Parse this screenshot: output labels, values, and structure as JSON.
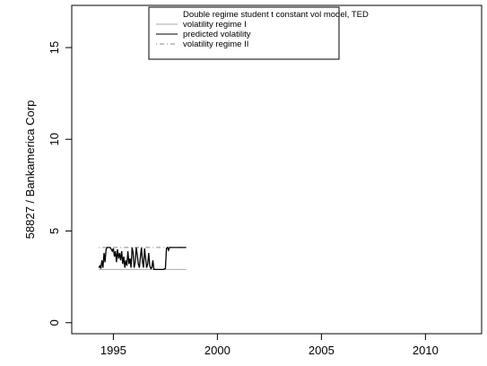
{
  "chart_data": {
    "type": "line",
    "title": "",
    "xlabel": "",
    "ylabel": "58827 / Bankamerica Corp",
    "xlim": [
      1993,
      2012.7
    ],
    "ylim": [
      -0.6,
      17.3
    ],
    "x_ticks": [
      1995,
      2000,
      2005,
      2010
    ],
    "x_tick_labels": [
      "1995",
      "2000",
      "2005",
      "2010"
    ],
    "y_ticks": [
      0,
      5,
      10,
      15
    ],
    "y_tick_labels": [
      "0",
      "5",
      "10",
      "15"
    ],
    "grid": false,
    "legend": {
      "placement": "top-center",
      "title": "Double regime student t constant vol model, TED",
      "entries": [
        {
          "label": "volatility regime I",
          "color": "#aaaaaa",
          "style": "solid"
        },
        {
          "label": "predicted volatility",
          "color": "#000000",
          "style": "solid"
        },
        {
          "label": "volatility regime II",
          "color": "#888888",
          "style": "dotdash"
        }
      ]
    },
    "series": [
      {
        "name": "volatility regime I",
        "color": "#aaaaaa",
        "style": "solid",
        "x": [
          1994.3,
          1998.5
        ],
        "y": [
          2.9,
          2.9
        ]
      },
      {
        "name": "volatility regime II",
        "color": "#888888",
        "style": "dotdash",
        "x": [
          1994.3,
          1998.5
        ],
        "y": [
          4.1,
          4.1
        ]
      },
      {
        "name": "predicted volatility",
        "color": "#000000",
        "style": "solid",
        "x": [
          1994.3,
          1994.35,
          1994.4,
          1994.45,
          1994.5,
          1994.55,
          1994.6,
          1994.65,
          1994.7,
          1994.75,
          1994.8,
          1994.85,
          1994.9,
          1994.95,
          1995.0,
          1995.05,
          1995.1,
          1995.15,
          1995.2,
          1995.25,
          1995.3,
          1995.35,
          1995.4,
          1995.45,
          1995.5,
          1995.55,
          1995.6,
          1995.65,
          1995.7,
          1995.75,
          1995.8,
          1995.85,
          1995.9,
          1995.95,
          1996.0,
          1996.05,
          1996.1,
          1996.15,
          1996.2,
          1996.25,
          1996.3,
          1996.35,
          1996.4,
          1996.45,
          1996.5,
          1996.55,
          1996.6,
          1996.65,
          1996.7,
          1996.75,
          1996.8,
          1996.85,
          1996.9,
          1996.95,
          1997.0,
          1997.05,
          1997.1,
          1997.2,
          1997.3,
          1997.4,
          1997.5,
          1997.55,
          1997.6,
          1997.65,
          1997.7,
          1997.8,
          1997.9,
          1998.0,
          1998.1,
          1998.2,
          1998.3,
          1998.4,
          1998.5
        ],
        "y": [
          3.0,
          3.1,
          2.95,
          3.4,
          3.0,
          3.8,
          3.3,
          4.0,
          4.1,
          4.1,
          4.1,
          4.1,
          4.0,
          3.9,
          4.05,
          3.6,
          3.9,
          3.3,
          4.0,
          3.5,
          3.8,
          3.4,
          3.9,
          3.2,
          3.6,
          3.0,
          3.4,
          3.1,
          3.9,
          3.2,
          3.5,
          3.0,
          4.1,
          3.8,
          3.0,
          3.3,
          4.1,
          3.7,
          3.2,
          3.0,
          3.6,
          4.1,
          3.3,
          3.0,
          4.05,
          3.5,
          3.0,
          3.2,
          3.8,
          3.1,
          2.95,
          3.0,
          3.4,
          2.9,
          2.9,
          2.9,
          2.9,
          2.9,
          2.9,
          2.9,
          2.95,
          4.05,
          4.1,
          3.95,
          4.1,
          4.1,
          4.1,
          4.1,
          4.1,
          4.1,
          4.1,
          4.1,
          4.1
        ]
      }
    ]
  }
}
